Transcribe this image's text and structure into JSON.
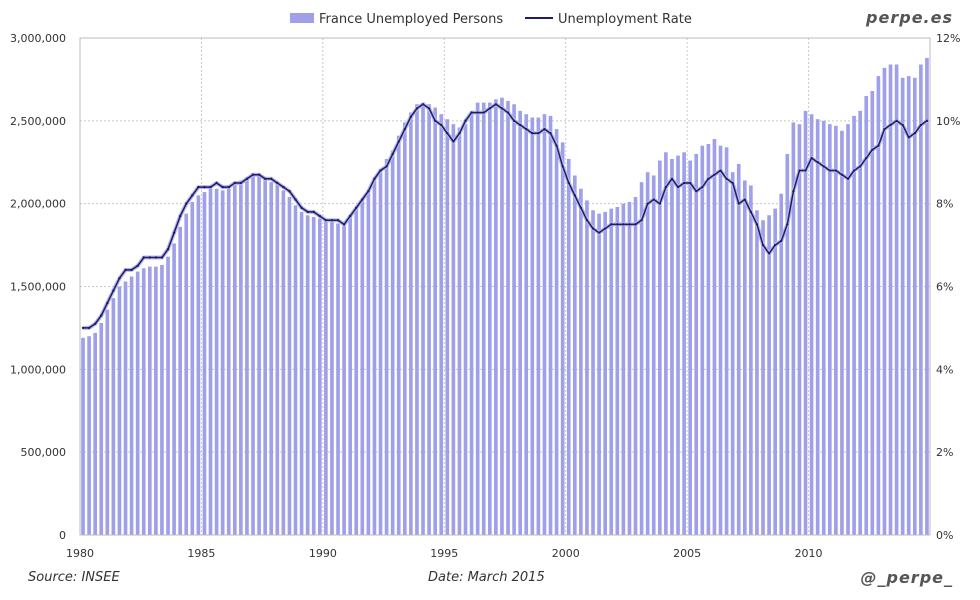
{
  "brand": "perpe.es",
  "footer": {
    "source": "Source: INSEE",
    "date": "Date: March 2015",
    "handle": "@_perpe_"
  },
  "colors": {
    "bars": "#9f9fea",
    "line": "#1c1c6a",
    "line_halo": "#b8b8e8",
    "grid": "#c8c8c8"
  },
  "chart_data": {
    "type": "bar+line",
    "title": "",
    "legend": [
      {
        "name": "France Unemployed Persons",
        "type": "bar",
        "axis": "left"
      },
      {
        "name": "Unemployment Rate",
        "type": "line",
        "axis": "right"
      }
    ],
    "legend_position": "top-center",
    "x_start": 1980,
    "frequency": "quarterly",
    "x_ticks": [
      "1980",
      "1985",
      "1990",
      "1995",
      "2000",
      "2005",
      "2010"
    ],
    "y_left": {
      "range": [
        0,
        3000000
      ],
      "ticks": [
        "0",
        "500,000",
        "1,000,000",
        "1,500,000",
        "2,000,000",
        "2,500,000",
        "3,000,000"
      ]
    },
    "y_right": {
      "range": [
        0,
        12
      ],
      "ticks": [
        "0%",
        "2%",
        "4%",
        "6%",
        "8%",
        "10%",
        "12%"
      ]
    },
    "grid": true,
    "series": [
      {
        "name": "France Unemployed Persons",
        "unit": "thousands",
        "values": [
          1190,
          1200,
          1220,
          1280,
          1360,
          1430,
          1500,
          1530,
          1560,
          1590,
          1610,
          1620,
          1620,
          1630,
          1680,
          1760,
          1860,
          1940,
          2010,
          2050,
          2070,
          2090,
          2090,
          2080,
          2100,
          2120,
          2140,
          2160,
          2170,
          2180,
          2150,
          2130,
          2120,
          2080,
          2040,
          1990,
          1950,
          1930,
          1920,
          1910,
          1910,
          1900,
          1880,
          1870,
          1920,
          1970,
          2020,
          2070,
          2140,
          2210,
          2270,
          2320,
          2410,
          2490,
          2550,
          2600,
          2610,
          2600,
          2580,
          2540,
          2510,
          2480,
          2460,
          2480,
          2540,
          2610,
          2610,
          2610,
          2630,
          2640,
          2620,
          2600,
          2560,
          2540,
          2520,
          2520,
          2540,
          2530,
          2450,
          2370,
          2270,
          2170,
          2090,
          2020,
          1960,
          1940,
          1950,
          1970,
          1980,
          2000,
          2010,
          2040,
          2130,
          2190,
          2170,
          2260,
          2310,
          2270,
          2290,
          2310,
          2260,
          2300,
          2350,
          2360,
          2390,
          2350,
          2340,
          2190,
          2240,
          2140,
          2110,
          1960,
          1900,
          1930,
          1970,
          2060,
          2300,
          2490,
          2480,
          2560,
          2540,
          2510,
          2500,
          2480,
          2470,
          2440,
          2480,
          2530,
          2560,
          2650,
          2680,
          2770,
          2820,
          2840,
          2840,
          2760,
          2770,
          2760,
          2840,
          2880
        ]
      },
      {
        "name": "Unemployment Rate",
        "unit": "%",
        "values": [
          5.0,
          5.0,
          5.1,
          5.3,
          5.6,
          5.9,
          6.2,
          6.4,
          6.4,
          6.5,
          6.7,
          6.7,
          6.7,
          6.7,
          6.9,
          7.3,
          7.7,
          8.0,
          8.2,
          8.4,
          8.4,
          8.4,
          8.5,
          8.4,
          8.4,
          8.5,
          8.5,
          8.6,
          8.7,
          8.7,
          8.6,
          8.6,
          8.5,
          8.4,
          8.3,
          8.1,
          7.9,
          7.8,
          7.8,
          7.7,
          7.6,
          7.6,
          7.6,
          7.5,
          7.7,
          7.9,
          8.1,
          8.3,
          8.6,
          8.8,
          8.9,
          9.2,
          9.5,
          9.8,
          10.1,
          10.3,
          10.4,
          10.3,
          10.0,
          9.9,
          9.7,
          9.5,
          9.7,
          10.0,
          10.2,
          10.2,
          10.2,
          10.3,
          10.4,
          10.3,
          10.2,
          10.0,
          9.9,
          9.8,
          9.7,
          9.7,
          9.8,
          9.7,
          9.4,
          8.9,
          8.5,
          8.2,
          7.9,
          7.6,
          7.4,
          7.3,
          7.4,
          7.5,
          7.5,
          7.5,
          7.5,
          7.5,
          7.6,
          8.0,
          8.1,
          8.0,
          8.4,
          8.6,
          8.4,
          8.5,
          8.5,
          8.3,
          8.4,
          8.6,
          8.7,
          8.8,
          8.6,
          8.5,
          8.0,
          8.1,
          7.8,
          7.5,
          7.0,
          6.8,
          7.0,
          7.1,
          7.5,
          8.3,
          8.8,
          8.8,
          9.1,
          9.0,
          8.9,
          8.8,
          8.8,
          8.7,
          8.6,
          8.8,
          8.9,
          9.1,
          9.3,
          9.4,
          9.8,
          9.9,
          10.0,
          9.9,
          9.6,
          9.7,
          9.9,
          10.0
        ]
      }
    ]
  }
}
